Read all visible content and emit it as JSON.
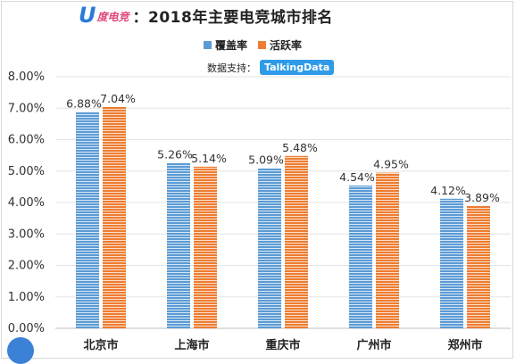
{
  "header": {
    "logo_u": "U",
    "logo_text": "度电竞",
    "title": "：2018年主要电竞城市排名"
  },
  "legend": {
    "items": [
      {
        "label": "覆盖率",
        "color": "#5b9bd5"
      },
      {
        "label": "活跃率",
        "color": "#ed7d31"
      }
    ]
  },
  "source": {
    "label": "数据支持：",
    "badge": "TalkingData"
  },
  "chart_data": {
    "type": "bar",
    "title": "2018年主要电竞城市排名",
    "categories": [
      "北京市",
      "上海市",
      "重庆市",
      "广州市",
      "郑州市"
    ],
    "series": [
      {
        "name": "覆盖率",
        "values": [
          6.88,
          5.26,
          5.09,
          4.54,
          4.12
        ],
        "labels": [
          "6.88%",
          "5.26%",
          "5.09%",
          "4.54%",
          "4.12%"
        ],
        "color": "#5b9bd5"
      },
      {
        "name": "活跃率",
        "values": [
          7.04,
          5.14,
          5.48,
          4.95,
          3.89
        ],
        "labels": [
          "7.04%",
          "5.14%",
          "5.48%",
          "4.95%",
          "3.89%"
        ],
        "color": "#ed7d31"
      }
    ],
    "ylim": [
      0,
      8
    ],
    "yticks": [
      "0.00%",
      "1.00%",
      "2.00%",
      "3.00%",
      "4.00%",
      "5.00%",
      "6.00%",
      "7.00%",
      "8.00%"
    ],
    "grid": true,
    "legend_position": "top"
  }
}
